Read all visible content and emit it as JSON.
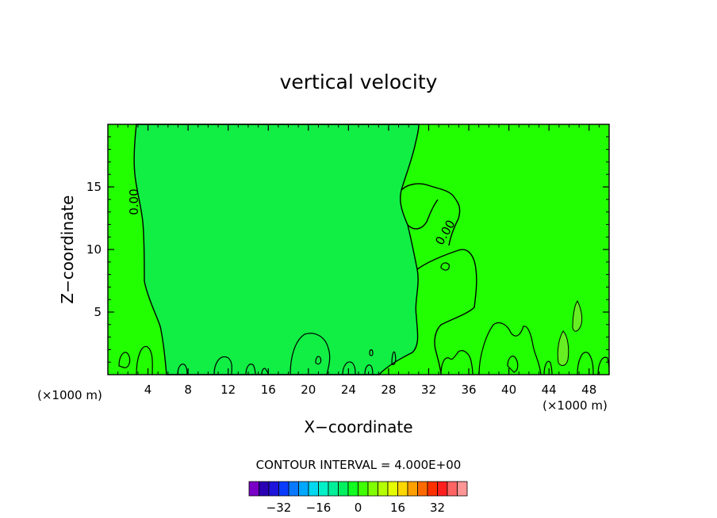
{
  "chart_data": {
    "type": "contour",
    "title": "vertical velocity",
    "xlabel": "X−coordinate",
    "ylabel": "Z−coordinate",
    "x_unit_left": "(×1000 m)",
    "x_unit_right": "(×1000 m)",
    "xlim": [
      0,
      50
    ],
    "ylim": [
      0,
      20
    ],
    "x_ticks": [
      4,
      8,
      12,
      16,
      20,
      24,
      28,
      32,
      36,
      40,
      44,
      48
    ],
    "x_tick_labels": [
      "4",
      "8",
      "12",
      "16",
      "20",
      "24",
      "28",
      "32",
      "36",
      "40",
      "44",
      "48"
    ],
    "y_ticks": [
      5,
      10,
      15
    ],
    "y_tick_labels": [
      "5",
      "10",
      "15"
    ],
    "contour_label": "0.00",
    "contour_interval_text": "CONTOUR INTERVAL = 4.000E+00",
    "colors": {
      "background_field": "#22ff00",
      "middle_region": "#11ee44",
      "small_patch": "#66ee22",
      "contour_line": "#000000"
    },
    "colorbar": {
      "colors": [
        "#7a00c8",
        "#2a00b4",
        "#1e14dc",
        "#0a3cff",
        "#0a78ff",
        "#00a8ff",
        "#00d8f0",
        "#00f0c8",
        "#00f09a",
        "#00f060",
        "#10ff20",
        "#40ff00",
        "#80ff00",
        "#b4ff00",
        "#e6ff00",
        "#ffd800",
        "#ffa000",
        "#ff6a00",
        "#ff3000",
        "#ff1e1e",
        "#ff6464",
        "#ff9696"
      ],
      "tick_values": [
        -32,
        -16,
        0,
        16,
        32
      ],
      "tick_labels": [
        "−32",
        "−16",
        "0",
        "16",
        "32"
      ],
      "min": -44,
      "max": 44
    }
  }
}
